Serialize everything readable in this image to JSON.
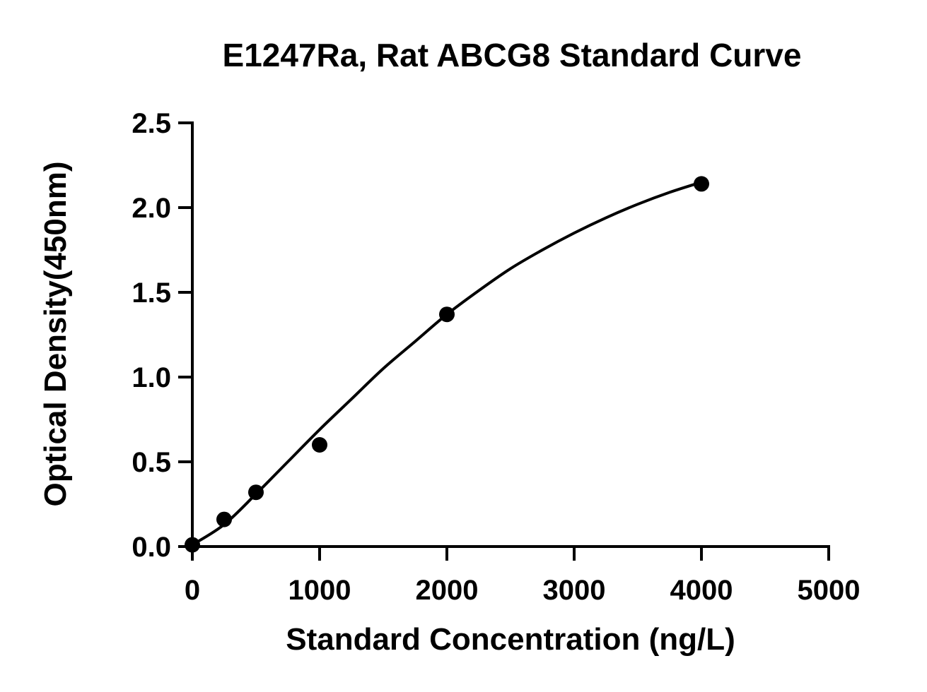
{
  "chart_data": {
    "type": "scatter",
    "title": "E1247Ra, Rat ABCG8 Standard Curve",
    "xlabel": "Standard Concentration (ng/L)",
    "ylabel": "Optical Density(450nm)",
    "xlim": [
      0,
      5000
    ],
    "ylim": [
      0,
      2.5
    ],
    "x_ticks": [
      0,
      1000,
      2000,
      3000,
      4000,
      5000
    ],
    "x_tick_labels": [
      "0",
      "1000",
      "2000",
      "3000",
      "4000",
      "5000"
    ],
    "y_ticks": [
      0,
      0.5,
      1.0,
      1.5,
      2.0,
      2.5
    ],
    "y_tick_labels": [
      "0.0",
      "0.5",
      "1.0",
      "1.5",
      "2.0",
      "2.5"
    ],
    "grid": false,
    "legend": "none",
    "series": [
      {
        "x": [
          0,
          250,
          500,
          1000,
          2000,
          4000
        ],
        "y": [
          0.01,
          0.16,
          0.32,
          0.6,
          1.37,
          2.14
        ],
        "marker": "circle",
        "color": "#000000"
      }
    ],
    "fit_curve": {
      "x": [
        0,
        250,
        500,
        750,
        1000,
        1250,
        1500,
        1750,
        2000,
        2250,
        2500,
        2750,
        3000,
        3250,
        3500,
        3750,
        4000
      ],
      "y": [
        0.01,
        0.13,
        0.31,
        0.5,
        0.69,
        0.87,
        1.05,
        1.21,
        1.37,
        1.51,
        1.64,
        1.75,
        1.85,
        1.94,
        2.02,
        2.09,
        2.15
      ],
      "color": "#000000"
    }
  }
}
